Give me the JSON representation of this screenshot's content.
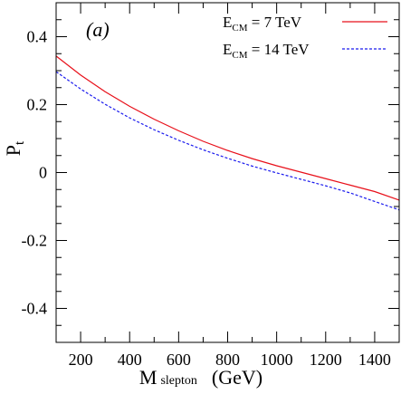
{
  "chart_data": {
    "type": "line",
    "panel_label": "(a)",
    "xlabel": {
      "main": "M",
      "sub": "slepton",
      "unit": "(GeV)"
    },
    "ylabel": {
      "main": "P",
      "sub": "t"
    },
    "xlim": [
      100,
      1500
    ],
    "ylim": [
      -0.5,
      0.5
    ],
    "x_ticks": [
      200,
      400,
      600,
      800,
      1000,
      1200,
      1400
    ],
    "y_ticks": [
      -0.4,
      -0.2,
      0,
      0.2,
      0.4
    ],
    "x_tick_labels": [
      "200",
      "400",
      "600",
      "800",
      "1000",
      "1200",
      "1400"
    ],
    "y_tick_labels": [
      "-0.4",
      "-0.2",
      "0",
      "0.2",
      "0.4"
    ],
    "x_minor_step": 100,
    "y_minor_step": 0.05,
    "grid": false,
    "legend_position": "top-right",
    "x": [
      100,
      200,
      300,
      400,
      500,
      600,
      700,
      800,
      900,
      1000,
      1100,
      1200,
      1300,
      1400,
      1500
    ],
    "series": [
      {
        "legend_prefix": "E",
        "legend_sub": "CM",
        "legend_value": " =   7 TeV",
        "color": "#e8101a",
        "dash": "solid",
        "values": [
          0.343,
          0.287,
          0.238,
          0.195,
          0.157,
          0.123,
          0.092,
          0.065,
          0.041,
          0.02,
          0.001,
          -0.018,
          -0.037,
          -0.056,
          -0.081
        ]
      },
      {
        "legend_prefix": "E",
        "legend_sub": "CM",
        "legend_value": " = 14 TeV",
        "color": "#1a1aee",
        "dash": "dashed",
        "values": [
          0.297,
          0.246,
          0.201,
          0.161,
          0.126,
          0.095,
          0.067,
          0.042,
          0.019,
          -0.001,
          -0.02,
          -0.039,
          -0.06,
          -0.085,
          -0.11
        ]
      }
    ]
  }
}
